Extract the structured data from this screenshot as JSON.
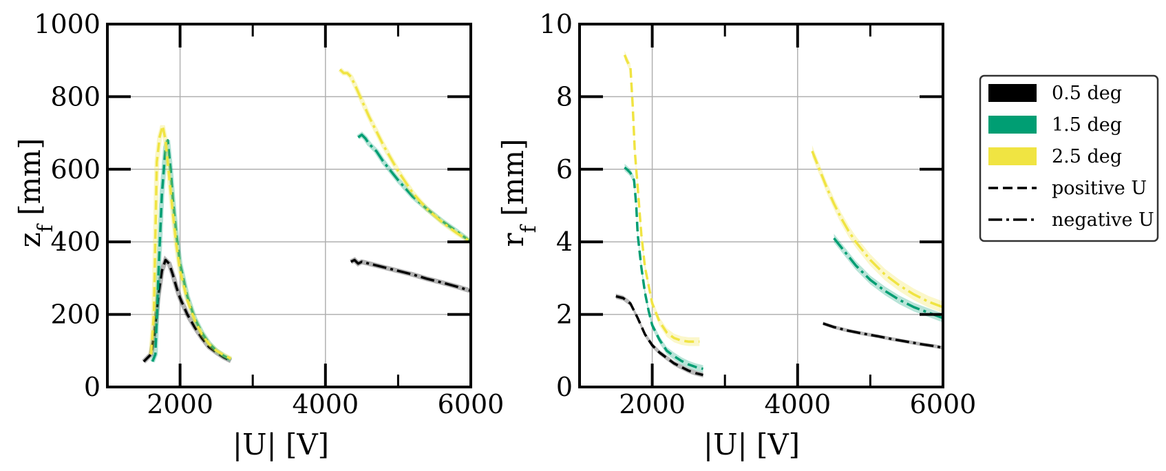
{
  "chart_data": [
    {
      "type": "line",
      "id": "zf",
      "ylabel": "z",
      "ylabel_sub": "f",
      "ylabel_unit": "[mm]",
      "xlabel": "|U| [V]",
      "xlim": [
        1000,
        6000
      ],
      "ylim": [
        0,
        1000
      ],
      "xticks": [
        2000,
        4000,
        6000
      ],
      "xtick_labels": [
        "2000",
        "4000",
        "6000"
      ],
      "yticks": [
        0,
        200,
        400,
        600,
        800,
        1000
      ],
      "ytick_labels": [
        "0",
        "200",
        "400",
        "600",
        "800",
        "1000"
      ],
      "series": [
        {
          "name": "0.5 deg positive U",
          "angle": "0.5 deg",
          "polarity": "positive",
          "x": [
            1500,
            1600,
            1650,
            1700,
            1750,
            1800,
            1850,
            1900,
            1950,
            2000,
            2100,
            2200,
            2300,
            2400,
            2500,
            2600,
            2700
          ],
          "y": [
            70,
            90,
            150,
            250,
            320,
            350,
            340,
            310,
            275,
            245,
            200,
            165,
            135,
            110,
            95,
            82,
            72
          ]
        },
        {
          "name": "1.5 deg positive U",
          "angle": "1.5 deg",
          "polarity": "positive",
          "x": [
            1620,
            1660,
            1700,
            1750,
            1800,
            1830,
            1870,
            1900,
            1950,
            2000,
            2100,
            2200,
            2300,
            2400,
            2500,
            2600,
            2700
          ],
          "y": [
            70,
            90,
            300,
            530,
            660,
            680,
            600,
            520,
            420,
            340,
            250,
            190,
            150,
            120,
            100,
            86,
            75
          ]
        },
        {
          "name": "2.5 deg positive U",
          "angle": "2.5 deg",
          "polarity": "positive",
          "x": [
            1600,
            1640,
            1680,
            1720,
            1760,
            1800,
            1850,
            1900,
            1950,
            2000,
            2100,
            2200,
            2300,
            2400,
            2500,
            2600,
            2700
          ],
          "y": [
            90,
            200,
            620,
            690,
            720,
            680,
            580,
            480,
            390,
            320,
            240,
            185,
            145,
            118,
            100,
            88,
            78
          ]
        },
        {
          "name": "0.5 deg negative U",
          "angle": "0.5 deg",
          "polarity": "negative",
          "x": [
            4350,
            4400,
            4450,
            4500,
            4600,
            4700,
            4800,
            5000,
            5200,
            5400,
            5600,
            5800,
            6000
          ],
          "y": [
            345,
            350,
            340,
            345,
            340,
            335,
            330,
            320,
            310,
            298,
            288,
            277,
            265
          ]
        },
        {
          "name": "1.5 deg negative U",
          "angle": "1.5 deg",
          "polarity": "negative",
          "x": [
            4450,
            4500,
            4550,
            4600,
            4700,
            4800,
            5000,
            5200,
            5400,
            5600,
            5800,
            6000
          ],
          "y": [
            688,
            695,
            685,
            670,
            650,
            620,
            570,
            525,
            490,
            458,
            430,
            400
          ]
        },
        {
          "name": "2.5 deg negative U",
          "angle": "2.5 deg",
          "polarity": "negative",
          "x": [
            4200,
            4250,
            4300,
            4350,
            4400,
            4500,
            4600,
            4800,
            5000,
            5200,
            5400,
            5600,
            5800,
            6000
          ],
          "y": [
            875,
            865,
            865,
            855,
            835,
            790,
            745,
            665,
            595,
            535,
            490,
            455,
            425,
            400
          ]
        }
      ]
    },
    {
      "type": "line",
      "id": "rf",
      "ylabel": "r",
      "ylabel_sub": "f",
      "ylabel_unit": "[mm]",
      "xlabel": "|U| [V]",
      "xlim": [
        1000,
        6000
      ],
      "ylim": [
        0,
        10
      ],
      "xticks": [
        2000,
        4000,
        6000
      ],
      "xtick_labels": [
        "2000",
        "4000",
        "6000"
      ],
      "yticks": [
        0,
        2,
        4,
        6,
        8,
        10
      ],
      "ytick_labels": [
        "0",
        "2",
        "4",
        "6",
        "8",
        "10"
      ],
      "series": [
        {
          "name": "0.5 deg positive U",
          "angle": "0.5 deg",
          "polarity": "positive",
          "band": 0.07,
          "x": [
            1500,
            1600,
            1700,
            1800,
            1900,
            2000,
            2100,
            2200,
            2300,
            2400,
            2500,
            2600,
            2700
          ],
          "y": [
            2.5,
            2.45,
            2.3,
            1.9,
            1.45,
            1.15,
            0.95,
            0.8,
            0.65,
            0.55,
            0.45,
            0.38,
            0.33
          ]
        },
        {
          "name": "1.5 deg positive U",
          "angle": "1.5 deg",
          "polarity": "positive",
          "band": 0.1,
          "x": [
            1620,
            1650,
            1700,
            1750,
            1780,
            1800,
            1850,
            1900,
            1950,
            2000,
            2100,
            2200,
            2300,
            2400,
            2500,
            2600,
            2700
          ],
          "y": [
            6.05,
            6.0,
            5.9,
            5.7,
            5.0,
            4.2,
            3.3,
            2.6,
            2.1,
            1.7,
            1.3,
            1.0,
            0.85,
            0.72,
            0.62,
            0.55,
            0.5
          ]
        },
        {
          "name": "2.5 deg positive U",
          "angle": "2.5 deg",
          "polarity": "positive",
          "band": 0.12,
          "x": [
            1620,
            1650,
            1700,
            1730,
            1760,
            1800,
            1850,
            1900,
            2000,
            2100,
            2200,
            2300,
            2400,
            2500,
            2600,
            2650
          ],
          "y": [
            9.15,
            9.0,
            8.8,
            7.8,
            6.5,
            5.5,
            4.2,
            3.3,
            2.3,
            1.8,
            1.5,
            1.35,
            1.28,
            1.25,
            1.25,
            1.25
          ]
        },
        {
          "name": "0.5 deg negative U",
          "angle": "0.5 deg",
          "polarity": "negative",
          "band": 0.05,
          "x": [
            4350,
            4500,
            4700,
            4900,
            5100,
            5300,
            5500,
            5700,
            5900,
            6000
          ],
          "y": [
            1.75,
            1.65,
            1.55,
            1.47,
            1.4,
            1.32,
            1.25,
            1.18,
            1.12,
            1.08
          ]
        },
        {
          "name": "1.5 deg negative U",
          "angle": "1.5 deg",
          "polarity": "negative",
          "band": 0.12,
          "x": [
            4500,
            4600,
            4700,
            4800,
            4900,
            5000,
            5200,
            5400,
            5600,
            5800,
            6000
          ],
          "y": [
            4.1,
            3.85,
            3.6,
            3.35,
            3.15,
            2.95,
            2.65,
            2.4,
            2.2,
            2.05,
            1.9
          ]
        },
        {
          "name": "2.5 deg negative U",
          "angle": "2.5 deg",
          "polarity": "negative",
          "band": 0.16,
          "x": [
            4200,
            4300,
            4400,
            4500,
            4600,
            4700,
            4800,
            5000,
            5200,
            5400,
            5600,
            5800,
            6000
          ],
          "y": [
            6.5,
            6.0,
            5.5,
            5.05,
            4.65,
            4.3,
            4.0,
            3.5,
            3.1,
            2.8,
            2.55,
            2.35,
            2.2
          ]
        }
      ]
    }
  ],
  "legend": {
    "items": [
      {
        "label": "0.5 deg",
        "kind": "patch",
        "color": "#000000"
      },
      {
        "label": "1.5 deg",
        "kind": "patch",
        "color": "#009e73"
      },
      {
        "label": "2.5 deg",
        "kind": "patch",
        "color": "#f0e442"
      },
      {
        "label": "positive U",
        "kind": "dashed",
        "color": "#000000"
      },
      {
        "label": "negative U",
        "kind": "dashdot",
        "color": "#000000"
      }
    ]
  },
  "colors": {
    "0.5 deg": "#000000",
    "1.5 deg": "#009e73",
    "2.5 deg": "#f0e442"
  }
}
